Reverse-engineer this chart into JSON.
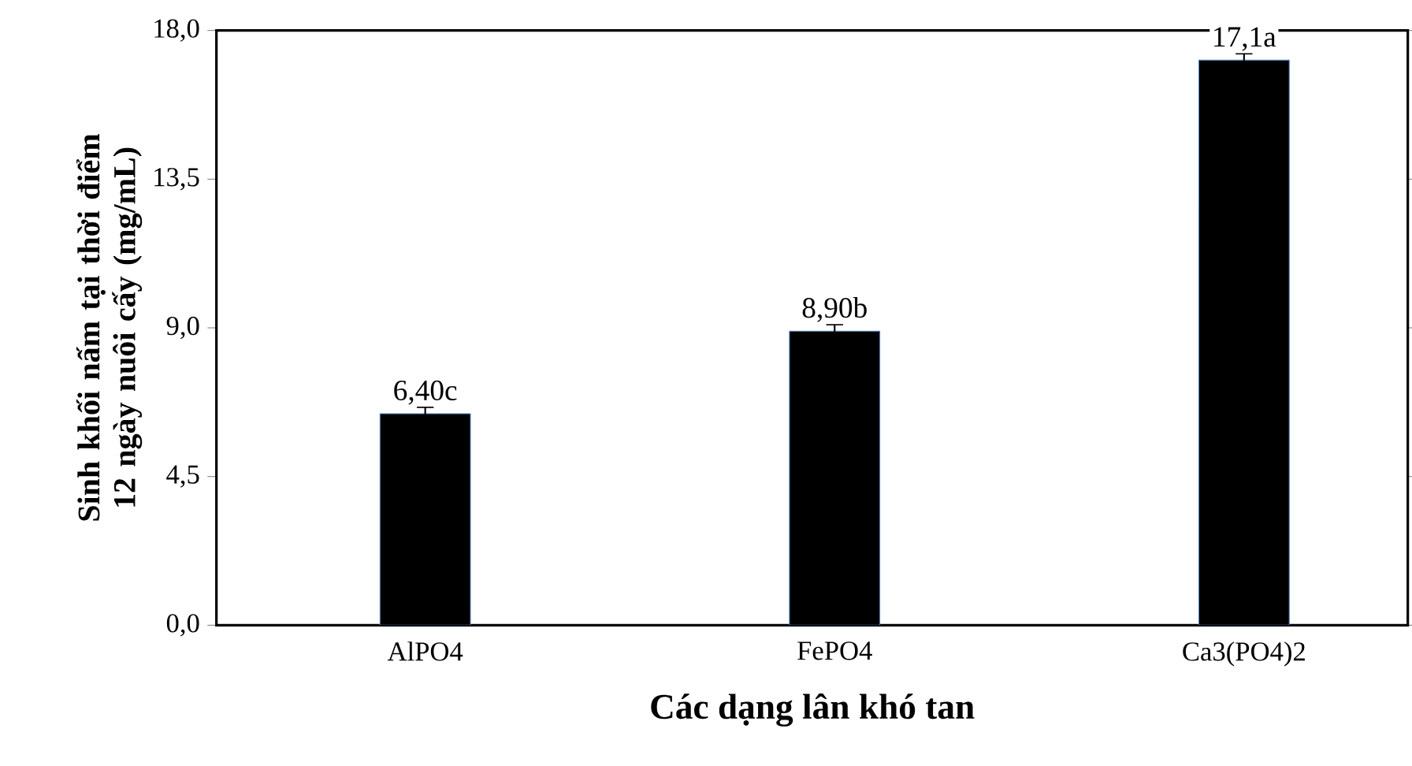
{
  "chart_data": {
    "type": "bar",
    "xlabel": "Các dạng lân khó tan",
    "ylabel": "Sinh khối nấm tại thời điểm 12 ngày nuôi cấy (mg/mL)",
    "categories": [
      "AlPO4",
      "FePO4",
      "Ca3(PO4)2"
    ],
    "values": [
      6.4,
      8.9,
      17.1
    ],
    "errors": [
      0.2,
      0.2,
      0.2
    ],
    "value_labels": [
      "6,40c",
      "8,90b",
      "17,1a"
    ],
    "color": "#000000",
    "ylim": [
      0,
      18
    ],
    "yticks": [
      {
        "value": 0,
        "label": "0,0"
      },
      {
        "value": 4.5,
        "label": "4,5"
      },
      {
        "value": 9,
        "label": "9,0"
      },
      {
        "value": 13.5,
        "label": "13,5"
      },
      {
        "value": 18,
        "label": "18,0"
      }
    ],
    "tick_labels": "xy"
  }
}
